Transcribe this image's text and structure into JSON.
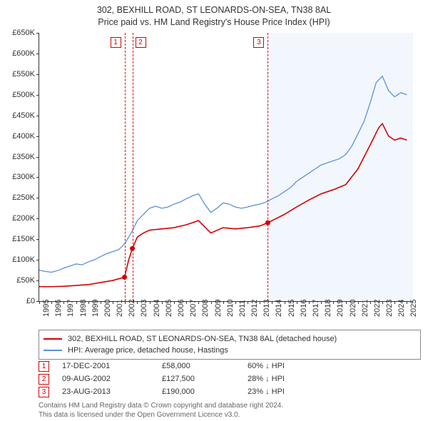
{
  "title": {
    "line1": "302, BEXHILL ROAD, ST LEONARDS-ON-SEA, TN38 8AL",
    "line2": "Price paid vs. HM Land Registry's House Price Index (HPI)"
  },
  "chart": {
    "type": "line",
    "background_color": "#ffffff",
    "xlim": [
      1995,
      2025.5
    ],
    "ylim": [
      0,
      650000
    ],
    "ytick_step": 50000,
    "ytick_prefix": "£",
    "ytick_suffix": "K",
    "ytick_divisor": 1000,
    "xticks_years": [
      1995,
      1996,
      1997,
      1998,
      1999,
      2000,
      2001,
      2002,
      2003,
      2004,
      2005,
      2006,
      2007,
      2008,
      2009,
      2010,
      2011,
      2012,
      2013,
      2014,
      2015,
      2016,
      2017,
      2018,
      2019,
      2020,
      2021,
      2022,
      2023,
      2024,
      2025
    ],
    "axis_font_size": 11,
    "shade_band": {
      "x_start": 2013.65,
      "x_end": 2025.5,
      "fill": "#eaf2fb"
    },
    "series": [
      {
        "id": "hpi",
        "label": "HPI: Average price, detached house, Hastings",
        "color": "#5b8fd6",
        "line_width": 1.3,
        "data": [
          [
            1995.0,
            75000
          ],
          [
            1995.5,
            72000
          ],
          [
            1996.0,
            70000
          ],
          [
            1996.5,
            74000
          ],
          [
            1997.0,
            80000
          ],
          [
            1997.5,
            85000
          ],
          [
            1998.0,
            90000
          ],
          [
            1998.5,
            88000
          ],
          [
            1999.0,
            95000
          ],
          [
            1999.5,
            100000
          ],
          [
            2000.0,
            108000
          ],
          [
            2000.5,
            115000
          ],
          [
            2001.0,
            120000
          ],
          [
            2001.5,
            125000
          ],
          [
            2002.0,
            140000
          ],
          [
            2002.5,
            165000
          ],
          [
            2003.0,
            195000
          ],
          [
            2003.5,
            210000
          ],
          [
            2004.0,
            225000
          ],
          [
            2004.5,
            230000
          ],
          [
            2005.0,
            225000
          ],
          [
            2005.5,
            228000
          ],
          [
            2006.0,
            235000
          ],
          [
            2006.5,
            240000
          ],
          [
            2007.0,
            248000
          ],
          [
            2007.5,
            255000
          ],
          [
            2008.0,
            260000
          ],
          [
            2008.5,
            235000
          ],
          [
            2009.0,
            215000
          ],
          [
            2009.5,
            225000
          ],
          [
            2010.0,
            238000
          ],
          [
            2010.5,
            235000
          ],
          [
            2011.0,
            228000
          ],
          [
            2011.5,
            225000
          ],
          [
            2012.0,
            228000
          ],
          [
            2012.5,
            232000
          ],
          [
            2013.0,
            235000
          ],
          [
            2013.5,
            240000
          ],
          [
            2014.0,
            248000
          ],
          [
            2014.5,
            255000
          ],
          [
            2015.0,
            265000
          ],
          [
            2015.5,
            275000
          ],
          [
            2016.0,
            290000
          ],
          [
            2016.5,
            300000
          ],
          [
            2017.0,
            310000
          ],
          [
            2017.5,
            320000
          ],
          [
            2018.0,
            330000
          ],
          [
            2018.5,
            335000
          ],
          [
            2019.0,
            340000
          ],
          [
            2019.5,
            345000
          ],
          [
            2020.0,
            355000
          ],
          [
            2020.5,
            375000
          ],
          [
            2021.0,
            405000
          ],
          [
            2021.5,
            435000
          ],
          [
            2022.0,
            480000
          ],
          [
            2022.5,
            530000
          ],
          [
            2023.0,
            545000
          ],
          [
            2023.5,
            510000
          ],
          [
            2024.0,
            495000
          ],
          [
            2024.5,
            505000
          ],
          [
            2025.0,
            500000
          ]
        ]
      },
      {
        "id": "property",
        "label": "302, BEXHILL ROAD, ST LEONARDS-ON-SEA, TN38 8AL (detached house)",
        "color": "#d40000",
        "line_width": 1.6,
        "data": [
          [
            1995.0,
            35000
          ],
          [
            1996.0,
            35000
          ],
          [
            1997.0,
            36000
          ],
          [
            1998.0,
            38000
          ],
          [
            1999.0,
            40000
          ],
          [
            2000.0,
            45000
          ],
          [
            2001.0,
            50000
          ],
          [
            2001.96,
            58000
          ],
          [
            2002.3,
            100000
          ],
          [
            2002.6,
            127500
          ],
          [
            2003.0,
            155000
          ],
          [
            2003.5,
            165000
          ],
          [
            2004.0,
            172000
          ],
          [
            2005.0,
            175000
          ],
          [
            2006.0,
            178000
          ],
          [
            2007.0,
            185000
          ],
          [
            2008.0,
            195000
          ],
          [
            2008.5,
            180000
          ],
          [
            2009.0,
            165000
          ],
          [
            2010.0,
            178000
          ],
          [
            2011.0,
            175000
          ],
          [
            2012.0,
            178000
          ],
          [
            2013.0,
            182000
          ],
          [
            2013.65,
            190000
          ],
          [
            2014.0,
            195000
          ],
          [
            2015.0,
            210000
          ],
          [
            2016.0,
            228000
          ],
          [
            2017.0,
            245000
          ],
          [
            2018.0,
            260000
          ],
          [
            2019.0,
            270000
          ],
          [
            2020.0,
            282000
          ],
          [
            2021.0,
            320000
          ],
          [
            2022.0,
            378000
          ],
          [
            2022.7,
            420000
          ],
          [
            2023.0,
            430000
          ],
          [
            2023.5,
            400000
          ],
          [
            2024.0,
            390000
          ],
          [
            2024.5,
            395000
          ],
          [
            2025.0,
            390000
          ]
        ]
      }
    ],
    "sale_points": {
      "color": "#d40000",
      "radius": 3.5,
      "points": [
        {
          "x": 2001.96,
          "y": 58000
        },
        {
          "x": 2002.6,
          "y": 127500
        },
        {
          "x": 2013.65,
          "y": 190000
        }
      ]
    },
    "event_lines": [
      {
        "id": 1,
        "x": 2001.96,
        "color": "#d40000",
        "label": "1",
        "label_offset_x": -20
      },
      {
        "id": 2,
        "x": 2002.6,
        "color": "#d40000",
        "label": "2",
        "label_offset_x": 4
      },
      {
        "id": 3,
        "x": 2013.65,
        "color": "#d40000",
        "label": "3",
        "label_offset_x": -20
      }
    ]
  },
  "legend": {
    "items": [
      {
        "color": "#d40000",
        "label_path": "chart.series.1.label"
      },
      {
        "color": "#5b8fd6",
        "label_path": "chart.series.0.label"
      }
    ]
  },
  "events_table": [
    {
      "id": "1",
      "color": "#d40000",
      "date": "17-DEC-2001",
      "price": "£58,000",
      "delta": "60% ↓ HPI"
    },
    {
      "id": "2",
      "color": "#d40000",
      "date": "09-AUG-2002",
      "price": "£127,500",
      "delta": "28% ↓ HPI"
    },
    {
      "id": "3",
      "color": "#d40000",
      "date": "23-AUG-2013",
      "price": "£190,000",
      "delta": "23% ↓ HPI"
    }
  ],
  "footer": {
    "line1": "Contains HM Land Registry data © Crown copyright and database right 2024.",
    "line2": "This data is licensed under the Open Government Licence v3.0."
  }
}
